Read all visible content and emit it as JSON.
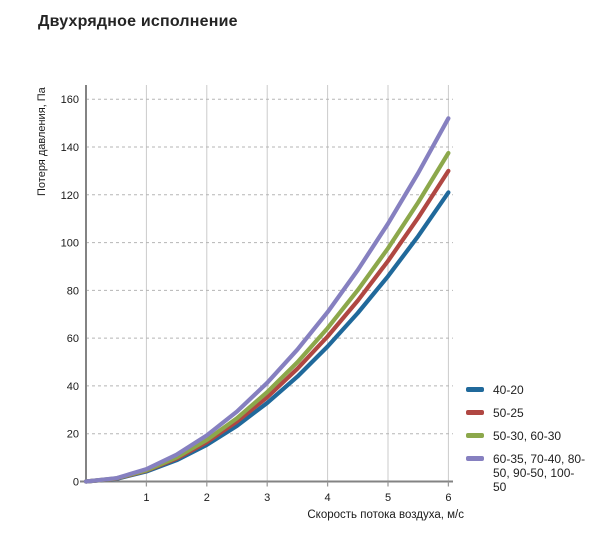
{
  "page": {
    "title": "Двухрядное исполнение"
  },
  "chart_data": {
    "type": "line",
    "title": "Двухрядное исполнение",
    "xlabel": "Скорость потока воздуха, м/с",
    "ylabel": "Потеря давления, Па",
    "xlim": [
      0,
      6
    ],
    "ylim": [
      0,
      160
    ],
    "x_ticks": [
      1,
      2,
      3,
      4,
      5,
      6
    ],
    "y_ticks": [
      0,
      20,
      40,
      60,
      80,
      100,
      120,
      140,
      160
    ],
    "grid": "vertical solid gray, horizontal dashed gray",
    "legend_position": "right-bottom",
    "x": [
      0,
      0.5,
      1,
      1.5,
      2,
      2.5,
      3,
      3.5,
      4,
      4.5,
      5,
      5.5,
      6
    ],
    "series": [
      {
        "name": "40-20",
        "color": "#20699B",
        "values": [
          0,
          1.1,
          4.2,
          8.9,
          15.3,
          23.3,
          32.9,
          43.9,
          56.5,
          70.5,
          85.9,
          102.7,
          121
        ]
      },
      {
        "name": "50-25",
        "color": "#B04742",
        "values": [
          0,
          1.2,
          4.5,
          9.6,
          16.5,
          25.1,
          35.3,
          47.2,
          60.7,
          75.7,
          92.3,
          110.4,
          130
        ]
      },
      {
        "name": "50-30, 60-30",
        "color": "#8CA84B",
        "values": [
          0,
          1.3,
          4.7,
          10.1,
          17.4,
          26.5,
          37.4,
          49.9,
          64.2,
          80.1,
          97.6,
          116.8,
          137.5
        ]
      },
      {
        "name": "60-35, 70-40, 80-50, 90-50, 100-50",
        "color": "#8680C0",
        "values": [
          0,
          1.4,
          5.2,
          11.2,
          19.3,
          29.3,
          41.3,
          55.2,
          70.9,
          88.5,
          107.9,
          129.1,
          152
        ]
      }
    ],
    "axis_color": "#838383",
    "grid_vertical_color": "#cbcbcb",
    "grid_horizontal_color": "#b5b5b5"
  }
}
